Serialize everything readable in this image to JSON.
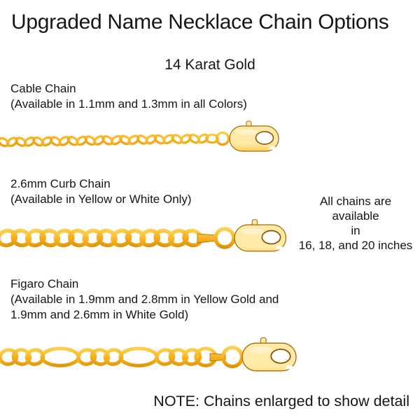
{
  "header": {
    "title": "Upgraded Name Necklace Chain Options",
    "subtitle": "14 Karat Gold"
  },
  "chains": [
    {
      "name": "Cable Chain",
      "availability_lines": [
        "(Available in 1.1mm and 1.3mm in all Colors)"
      ]
    },
    {
      "name": "2.6mm Curb Chain",
      "availability_lines": [
        "(Available in Yellow or White Only)"
      ]
    },
    {
      "name": "Figaro Chain",
      "availability_lines": [
        "(Available in 1.9mm and 2.8mm in Yellow Gold and",
        "1.9mm and 2.6mm in White Gold)"
      ]
    }
  ],
  "length_note": {
    "lines": [
      "All chains are",
      "available",
      "in",
      "16, 18, and 20 inches"
    ]
  },
  "footer_note": "NOTE: Chains enlarged to show detail",
  "colors": {
    "text": "#161616",
    "gold_highlight": "#ffeaa8",
    "gold_light": "#fcc93f",
    "gold_mid": "#f0a40e",
    "gold_dark": "#b97700",
    "gold_outline": "#a96800"
  }
}
